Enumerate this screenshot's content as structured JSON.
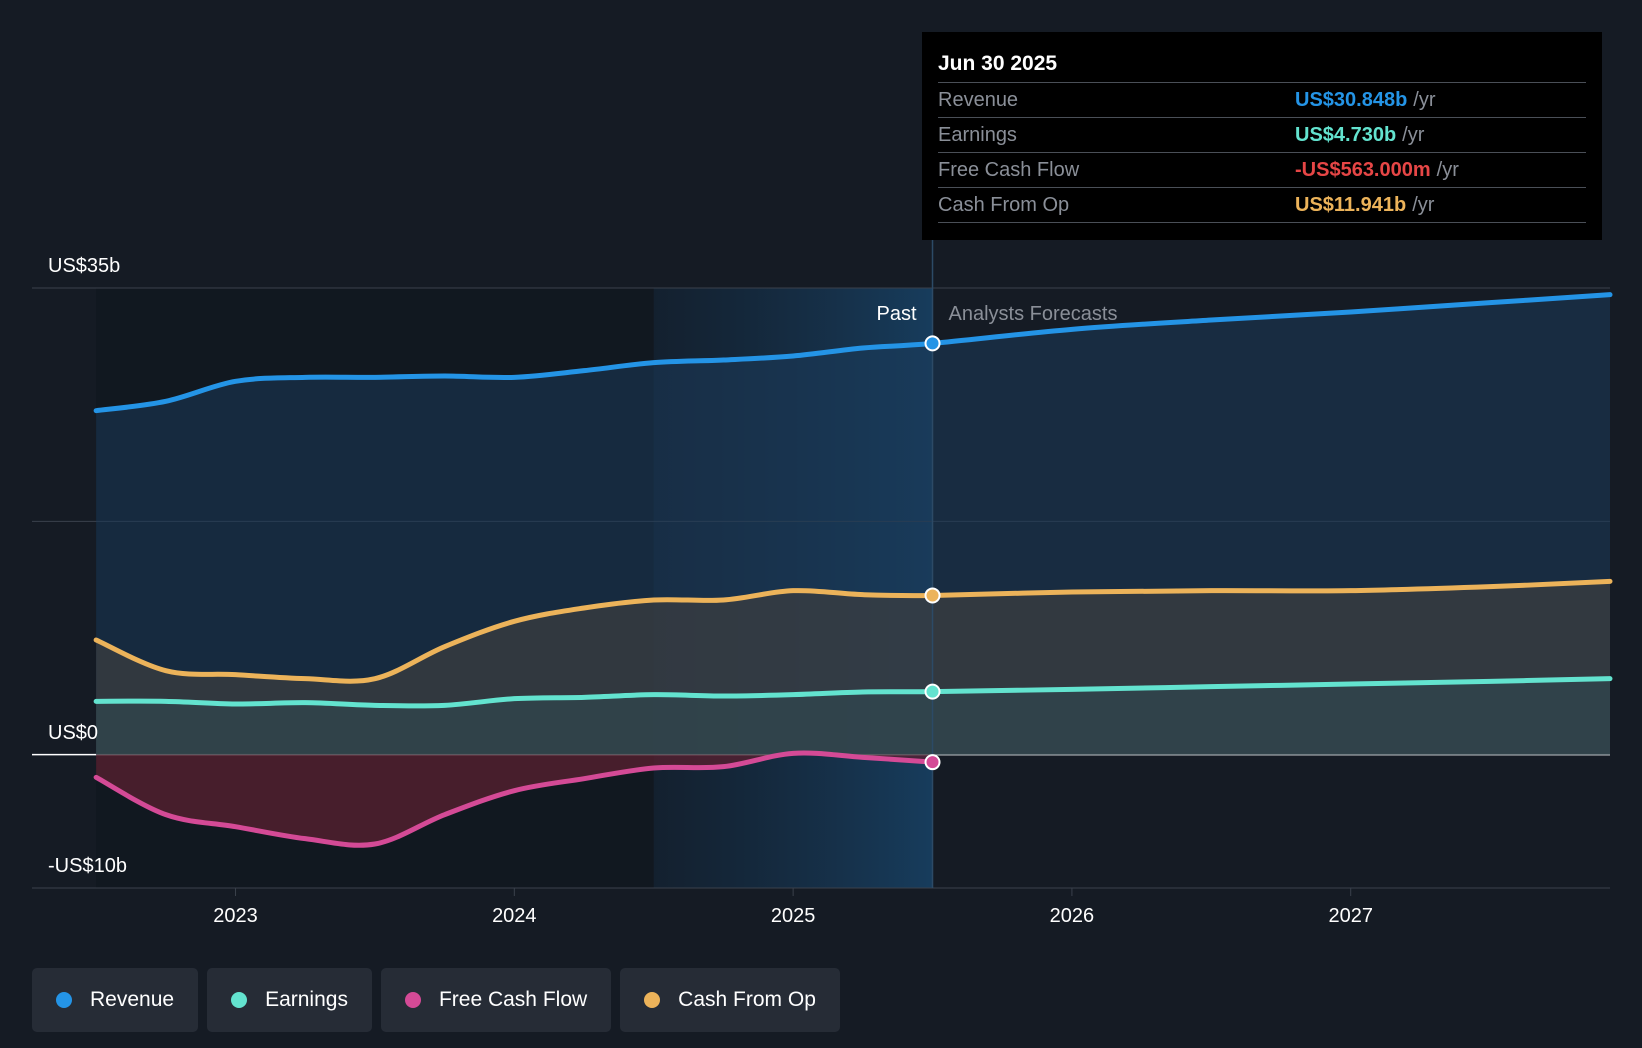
{
  "chart_data": {
    "type": "area",
    "y_labels": {
      "top": "US$35b",
      "zero": "US$0",
      "bottom": "-US$10b"
    },
    "ylim": [
      -10,
      35
    ],
    "xlim": [
      2022.27,
      2027.93
    ],
    "x_ticks": [
      "2023",
      "2024",
      "2025",
      "2026",
      "2027"
    ],
    "x_tick_values": [
      2023,
      2024,
      2025,
      2026,
      2027
    ],
    "past_label": "Past",
    "forecast_label": "Analysts Forecasts",
    "divider_x": 2025.5,
    "highlight_start_x": 2024.5,
    "series": [
      {
        "name": "Revenue",
        "color": "#2494e6",
        "x": [
          2022.5,
          2022.75,
          2023.0,
          2023.25,
          2023.5,
          2023.75,
          2024.0,
          2024.25,
          2024.5,
          2024.75,
          2025.0,
          2025.25,
          2025.5,
          2026.0,
          2026.5,
          2027.0,
          2027.5,
          2027.93
        ],
        "values": [
          25.8,
          26.5,
          28.0,
          28.3,
          28.3,
          28.4,
          28.3,
          28.8,
          29.4,
          29.6,
          29.9,
          30.5,
          30.848,
          31.9,
          32.6,
          33.2,
          33.9,
          34.5
        ]
      },
      {
        "name": "Earnings",
        "color": "#63e3cf",
        "x": [
          2022.5,
          2022.75,
          2023.0,
          2023.25,
          2023.5,
          2023.75,
          2024.0,
          2024.25,
          2024.5,
          2024.75,
          2025.0,
          2025.25,
          2025.5,
          2026.0,
          2026.5,
          2027.0,
          2027.5,
          2027.93
        ],
        "values": [
          4.0,
          4.0,
          3.8,
          3.9,
          3.7,
          3.7,
          4.2,
          4.3,
          4.5,
          4.4,
          4.5,
          4.7,
          4.73,
          4.9,
          5.1,
          5.3,
          5.5,
          5.7
        ]
      },
      {
        "name": "Free Cash Flow",
        "color": "#d44a96",
        "x": [
          2022.5,
          2022.75,
          2023.0,
          2023.25,
          2023.5,
          2023.75,
          2024.0,
          2024.25,
          2024.5,
          2024.75,
          2025.0,
          2025.25,
          2025.5
        ],
        "values": [
          -1.7,
          -4.5,
          -5.4,
          -6.3,
          -6.7,
          -4.5,
          -2.7,
          -1.8,
          -1.0,
          -0.9,
          0.1,
          -0.2,
          -0.563
        ]
      },
      {
        "name": "Cash From Op",
        "color": "#ecb35a",
        "x": [
          2022.5,
          2022.75,
          2023.0,
          2023.25,
          2023.5,
          2023.75,
          2024.0,
          2024.25,
          2024.5,
          2024.75,
          2025.0,
          2025.25,
          2025.5,
          2026.0,
          2026.5,
          2027.0,
          2027.5,
          2027.93
        ],
        "values": [
          8.6,
          6.3,
          6.0,
          5.7,
          5.7,
          8.1,
          10.0,
          11.0,
          11.6,
          11.6,
          12.3,
          12.0,
          11.941,
          12.2,
          12.3,
          12.3,
          12.6,
          13.0
        ]
      }
    ]
  },
  "tooltip": {
    "date": "Jun 30 2025",
    "rows": [
      {
        "name": "Revenue",
        "value": "US$30.848b",
        "unit": "/yr",
        "color": "#2494e6"
      },
      {
        "name": "Earnings",
        "value": "US$4.730b",
        "unit": "/yr",
        "color": "#63e3cf"
      },
      {
        "name": "Free Cash Flow",
        "value": "-US$563.000m",
        "unit": "/yr",
        "color": "#e64646"
      },
      {
        "name": "Cash From Op",
        "value": "US$11.941b",
        "unit": "/yr",
        "color": "#ecb35a"
      }
    ]
  },
  "legend": [
    {
      "label": "Revenue",
      "color": "#2494e6"
    },
    {
      "label": "Earnings",
      "color": "#63e3cf"
    },
    {
      "label": "Free Cash Flow",
      "color": "#d44a96"
    },
    {
      "label": "Cash From Op",
      "color": "#ecb35a"
    }
  ]
}
